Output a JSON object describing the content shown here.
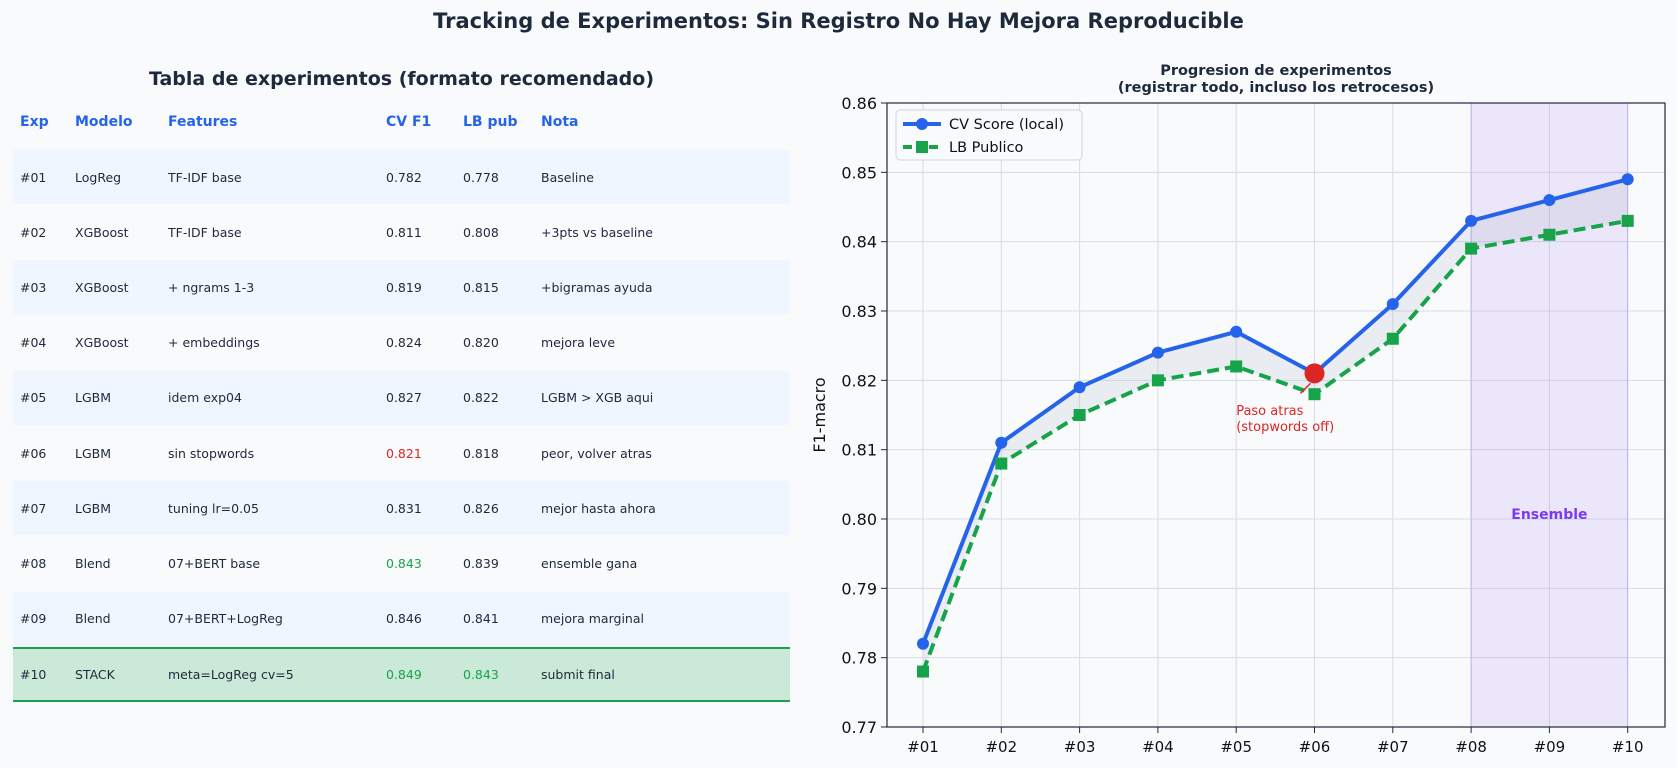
{
  "page_title": "Tracking de Experimentos: Sin Registro No Hay Mejora Reproducible",
  "table": {
    "title": "Tabla de experimentos (formato recomendado)",
    "headers": [
      "Exp",
      "Modelo",
      "Features",
      "CV F1",
      "LB pub",
      "Nota"
    ],
    "rows": [
      {
        "exp": "#01",
        "model": "LogReg",
        "features": "TF-IDF base",
        "cv": "0.782",
        "lb": "0.778",
        "note": "Baseline",
        "cv_color": "",
        "lb_color": ""
      },
      {
        "exp": "#02",
        "model": "XGBoost",
        "features": "TF-IDF base",
        "cv": "0.811",
        "lb": "0.808",
        "note": "+3pts vs baseline",
        "cv_color": "",
        "lb_color": ""
      },
      {
        "exp": "#03",
        "model": "XGBoost",
        "features": "+ ngrams 1-3",
        "cv": "0.819",
        "lb": "0.815",
        "note": "+bigramas ayuda",
        "cv_color": "",
        "lb_color": ""
      },
      {
        "exp": "#04",
        "model": "XGBoost",
        "features": "+ embeddings",
        "cv": "0.824",
        "lb": "0.820",
        "note": "mejora leve",
        "cv_color": "",
        "lb_color": ""
      },
      {
        "exp": "#05",
        "model": "LGBM",
        "features": "idem exp04",
        "cv": "0.827",
        "lb": "0.822",
        "note": "LGBM > XGB aqui",
        "cv_color": "",
        "lb_color": ""
      },
      {
        "exp": "#06",
        "model": "LGBM",
        "features": "sin stopwords",
        "cv": "0.821",
        "lb": "0.818",
        "note": "peor, volver atras",
        "cv_color": "red",
        "lb_color": ""
      },
      {
        "exp": "#07",
        "model": "LGBM",
        "features": "tuning lr=0.05",
        "cv": "0.831",
        "lb": "0.826",
        "note": "mejor hasta ahora",
        "cv_color": "",
        "lb_color": ""
      },
      {
        "exp": "#08",
        "model": "Blend",
        "features": "07+BERT base",
        "cv": "0.843",
        "lb": "0.839",
        "note": "ensemble gana",
        "cv_color": "green",
        "lb_color": ""
      },
      {
        "exp": "#09",
        "model": "Blend",
        "features": "07+BERT+LogReg",
        "cv": "0.846",
        "lb": "0.841",
        "note": "mejora marginal",
        "cv_color": "",
        "lb_color": ""
      },
      {
        "exp": "#10",
        "model": "STACK",
        "features": "meta=LogReg cv=5",
        "cv": "0.849",
        "lb": "0.843",
        "note": "submit final",
        "cv_color": "green",
        "lb_color": "green"
      }
    ]
  },
  "chart_data": {
    "type": "line",
    "title": "Progresion de experimentos\n(registrar todo, incluso los retrocesos)",
    "xlabel": "",
    "ylabel": "F1-macro",
    "categories": [
      "#01",
      "#02",
      "#03",
      "#04",
      "#05",
      "#06",
      "#07",
      "#08",
      "#09",
      "#10"
    ],
    "ylim": [
      0.77,
      0.86
    ],
    "yticks": [
      "0.77",
      "0.78",
      "0.79",
      "0.80",
      "0.81",
      "0.82",
      "0.83",
      "0.84",
      "0.85",
      "0.86"
    ],
    "grid": true,
    "legend_position": "top-left",
    "series": [
      {
        "name": "CV Score (local)",
        "values": [
          0.782,
          0.811,
          0.819,
          0.824,
          0.827,
          0.821,
          0.831,
          0.843,
          0.846,
          0.849
        ],
        "color": "#2563eb",
        "style": "solid",
        "marker": "circle"
      },
      {
        "name": "LB Publico",
        "values": [
          0.778,
          0.808,
          0.815,
          0.82,
          0.822,
          0.818,
          0.826,
          0.839,
          0.841,
          0.843
        ],
        "color": "#16a34a",
        "style": "dashed",
        "marker": "square"
      }
    ],
    "highlight_point": {
      "category": "#06",
      "value": 0.821,
      "color": "#dc2626"
    },
    "annotation": {
      "text": "Paso atras\n(stopwords off)",
      "at_category": "#05",
      "at_value": 0.815,
      "color": "#dc2626"
    },
    "shaded_region": {
      "from": "#08",
      "to": "#10",
      "label": "Ensemble",
      "label_value": 0.8,
      "color": "#7c3aed"
    }
  }
}
